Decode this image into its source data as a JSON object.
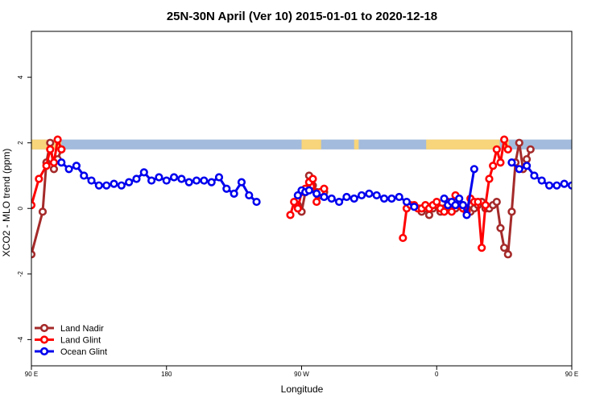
{
  "chart_data": {
    "type": "line",
    "title": "25N-30N April (Ver 10)   2015-01-01 to 2020-12-18",
    "xlabel": "Longitude",
    "ylabel": "XCO2 - MLO trend (ppm)",
    "xlim": [
      90,
      450
    ],
    "ylim": [
      -4.8,
      5.4
    ],
    "x_ticks": [
      {
        "value": 90,
        "label": "90 E"
      },
      {
        "value": 180,
        "label": "180"
      },
      {
        "value": 270,
        "label": "90 W"
      },
      {
        "value": 360,
        "label": "0"
      },
      {
        "value": 450,
        "label": "90 E"
      },
      {
        "value": 540,
        "label": "180"
      }
    ],
    "y_ticks": [
      {
        "value": -4,
        "label": "-4"
      },
      {
        "value": -2,
        "label": "-2"
      },
      {
        "value": 0,
        "label": "0"
      },
      {
        "value": 2,
        "label": "2"
      },
      {
        "value": 4,
        "label": "4"
      }
    ],
    "land_strip": {
      "y_range": [
        1.8,
        2.1
      ],
      "ocean_color": "#a3bbdc",
      "land_color": "#f8d57a",
      "land_segments": [
        [
          90,
          110
        ],
        [
          270,
          283
        ],
        [
          305,
          308
        ],
        [
          353,
          402
        ],
        [
          405,
          408
        ],
        [
          521,
          545
        ]
      ]
    },
    "legend_position": "bottom-left",
    "series": [
      {
        "name": "Land Nadir",
        "color": "#a52a2a",
        "segments": [
          [
            [
              90,
              -1.4
            ],
            [
              97.5,
              -0.1
            ],
            [
              100,
              1.4
            ],
            [
              102.5,
              2.0
            ],
            [
              105,
              1.2
            ],
            [
              107.5,
              1.5
            ],
            [
              110,
              1.8
            ]
          ],
          [
            [
              267.5,
              0.1
            ],
            [
              270,
              -0.1
            ],
            [
              272.5,
              0.5
            ],
            [
              275,
              1.0
            ],
            [
              277.5,
              0.7
            ],
            [
              280,
              0.5
            ],
            [
              282.5,
              0.4
            ],
            [
              285,
              0.5
            ]
          ],
          [
            [
              350,
              -0.1
            ],
            [
              352.5,
              0.0
            ],
            [
              355,
              -0.2
            ],
            [
              357.5,
              0.0
            ],
            [
              360,
              0.1
            ],
            [
              362.5,
              -0.1
            ],
            [
              365,
              0.0
            ],
            [
              367.5,
              0.1
            ],
            [
              370,
              0.0
            ],
            [
              372.5,
              0.0
            ],
            [
              375,
              0.1
            ],
            [
              377.5,
              0.1
            ],
            [
              380,
              0.0
            ],
            [
              382.5,
              -0.1
            ],
            [
              385,
              0.0
            ],
            [
              387.5,
              0.1
            ],
            [
              390,
              0.2
            ],
            [
              392.5,
              0.0
            ],
            [
              395,
              0.0
            ],
            [
              397.5,
              0.1
            ],
            [
              400,
              0.2
            ],
            [
              402.5,
              -0.6
            ],
            [
              405,
              -1.2
            ],
            [
              407.5,
              -1.4
            ],
            [
              410,
              -0.1
            ],
            [
              412.5,
              1.4
            ],
            [
              415,
              2.0
            ],
            [
              417.5,
              1.2
            ],
            [
              420,
              1.5
            ],
            [
              422.5,
              1.8
            ]
          ]
        ]
      },
      {
        "name": "Land Glint",
        "color": "#ff0000",
        "segments": [
          [
            [
              90,
              0.1
            ],
            [
              95,
              0.9
            ],
            [
              100,
              1.3
            ],
            [
              102.5,
              1.8
            ],
            [
              105,
              1.4
            ],
            [
              107.5,
              2.1
            ],
            [
              110,
              1.8
            ]
          ],
          [
            [
              262.5,
              -0.2
            ],
            [
              265,
              0.2
            ],
            [
              267.5,
              0.0
            ],
            [
              270,
              0.5
            ],
            [
              272.5,
              0.6
            ],
            [
              275,
              0.8
            ],
            [
              277.5,
              0.9
            ],
            [
              280,
              0.2
            ],
            [
              282.5,
              0.5
            ],
            [
              285,
              0.6
            ]
          ],
          [
            [
              337.5,
              -0.9
            ],
            [
              340,
              0.0
            ],
            [
              342.5,
              0.1
            ],
            [
              345,
              0.1
            ],
            [
              347.5,
              0.0
            ],
            [
              350,
              0.0
            ],
            [
              352.5,
              0.1
            ],
            [
              355,
              0.0
            ],
            [
              357.5,
              0.1
            ],
            [
              360,
              0.2
            ],
            [
              362.5,
              0.0
            ],
            [
              365,
              -0.1
            ],
            [
              367.5,
              0.2
            ],
            [
              370,
              -0.1
            ],
            [
              372.5,
              0.4
            ],
            [
              375,
              0.1
            ],
            [
              377.5,
              0.0
            ],
            [
              380,
              -0.1
            ],
            [
              382.5,
              0.3
            ],
            [
              385,
              0.2
            ],
            [
              387.5,
              0.2
            ],
            [
              390,
              -1.2
            ],
            [
              392.5,
              0.1
            ],
            [
              395,
              0.9
            ],
            [
              397.5,
              1.3
            ],
            [
              400,
              1.8
            ],
            [
              402.5,
              1.4
            ],
            [
              405,
              2.1
            ],
            [
              407.5,
              1.8
            ]
          ]
        ]
      },
      {
        "name": "Ocean Glint",
        "color": "#0000ee",
        "segments": [
          [
            [
              110,
              1.4
            ],
            [
              115,
              1.2
            ],
            [
              120,
              1.3
            ],
            [
              125,
              1.0
            ],
            [
              130,
              0.85
            ],
            [
              135,
              0.7
            ],
            [
              140,
              0.7
            ],
            [
              145,
              0.75
            ],
            [
              150,
              0.7
            ],
            [
              155,
              0.8
            ],
            [
              160,
              0.9
            ],
            [
              165,
              1.1
            ],
            [
              170,
              0.85
            ],
            [
              175,
              0.95
            ],
            [
              180,
              0.85
            ],
            [
              185,
              0.95
            ],
            [
              190,
              0.9
            ],
            [
              195,
              0.8
            ],
            [
              200,
              0.85
            ],
            [
              205,
              0.85
            ],
            [
              210,
              0.8
            ],
            [
              215,
              0.95
            ],
            [
              220,
              0.6
            ],
            [
              225,
              0.45
            ],
            [
              230,
              0.8
            ],
            [
              235,
              0.4
            ],
            [
              240,
              0.2
            ]
          ],
          [
            [
              267.5,
              0.4
            ],
            [
              270,
              0.55
            ],
            [
              272.5,
              0.5
            ],
            [
              275,
              0.55
            ],
            [
              280,
              0.45
            ],
            [
              285,
              0.35
            ],
            [
              290,
              0.3
            ],
            [
              295,
              0.2
            ],
            [
              300,
              0.35
            ],
            [
              305,
              0.3
            ],
            [
              310,
              0.4
            ],
            [
              315,
              0.45
            ],
            [
              320,
              0.4
            ],
            [
              325,
              0.3
            ],
            [
              330,
              0.3
            ],
            [
              335,
              0.35
            ],
            [
              340,
              0.2
            ],
            [
              345,
              0.05
            ]
          ],
          [
            [
              365,
              0.3
            ],
            [
              367.5,
              0.1
            ],
            [
              370,
              0.2
            ],
            [
              372.5,
              0.1
            ],
            [
              375,
              0.3
            ],
            [
              377.5,
              0.1
            ],
            [
              380,
              -0.2
            ],
            [
              385,
              1.2
            ]
          ],
          [
            [
              410,
              1.4
            ],
            [
              415,
              1.2
            ],
            [
              420,
              1.3
            ],
            [
              425,
              1.0
            ],
            [
              430,
              0.85
            ],
            [
              435,
              0.7
            ],
            [
              440,
              0.7
            ],
            [
              445,
              0.75
            ],
            [
              450,
              0.7
            ],
            [
              455,
              0.75
            ],
            [
              460,
              0.9
            ],
            [
              465,
              1.15
            ]
          ]
        ]
      }
    ]
  }
}
